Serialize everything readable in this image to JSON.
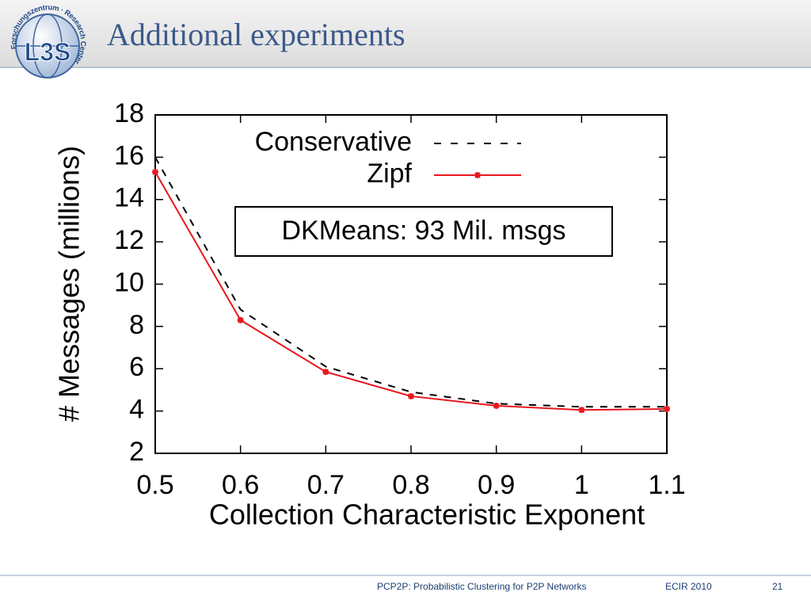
{
  "header": {
    "title": "Additional experiments",
    "logo_text": "L3S",
    "logo_ring": "Forschungszentrum · Research Center"
  },
  "footer": {
    "talk": "PCP2P: Probabilistic Clustering for P2P Networks",
    "venue": "ECIR 2010",
    "page": "21"
  },
  "chart_data": {
    "type": "line",
    "xlabel": "Collection Characteristic Exponent",
    "ylabel": "# Messages (millions)",
    "annotation": "DKMeans: 93 Mil. msgs",
    "x": [
      0.5,
      0.6,
      0.7,
      0.8,
      0.9,
      1,
      1.1
    ],
    "series": [
      {
        "name": "Conservative",
        "color": "#000000",
        "dash": true,
        "values": [
          16.0,
          8.8,
          6.1,
          4.9,
          4.35,
          4.2,
          4.2
        ]
      },
      {
        "name": "Zipf",
        "color": "#e8171d",
        "dash": false,
        "values": [
          15.3,
          8.3,
          5.85,
          4.7,
          4.25,
          4.05,
          4.1
        ]
      }
    ],
    "xlim": [
      0.5,
      1.1
    ],
    "xticks": [
      0.5,
      0.6,
      0.7,
      0.8,
      0.9,
      1,
      1.1
    ],
    "ylim": [
      2,
      18
    ],
    "yticks": [
      2,
      4,
      6,
      8,
      10,
      12,
      14,
      16,
      18
    ],
    "grid": false,
    "legend": "top-right"
  }
}
